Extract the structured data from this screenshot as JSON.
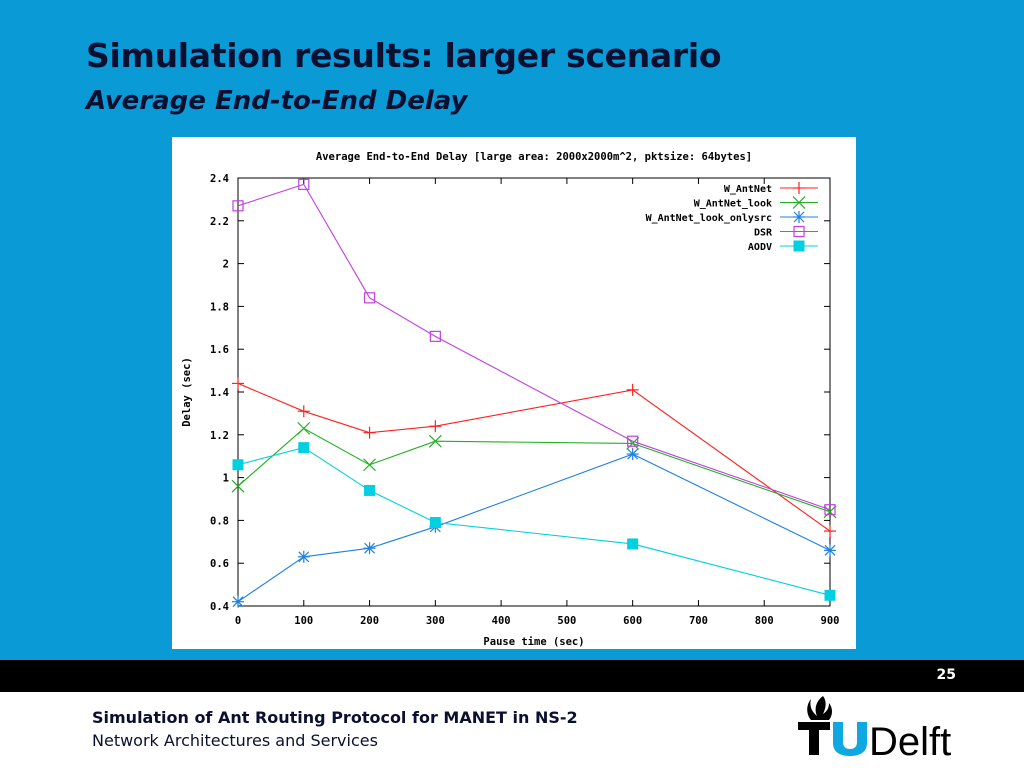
{
  "slide": {
    "title": "Simulation results: larger scenario",
    "subtitle": "Average End-to-End Delay",
    "page_number": "25",
    "footer_line1": "Simulation of Ant Routing Protocol for MANET in NS-2",
    "footer_line2": "Network Architectures and Services",
    "logo_text": "TUDelft",
    "background_color": "#0a9ad6"
  },
  "chart_data": {
    "type": "line",
    "title": "Average End-to-End Delay [large area: 2000x2000m^2, pktsize: 64bytes]",
    "xlabel": "Pause time (sec)",
    "ylabel": "Delay (sec)",
    "xlim": [
      0,
      900
    ],
    "ylim": [
      0.4,
      2.4
    ],
    "xticks": [
      0,
      100,
      200,
      300,
      400,
      500,
      600,
      700,
      800,
      900
    ],
    "yticks": [
      0.4,
      0.6,
      0.8,
      1,
      1.2,
      1.4,
      1.6,
      1.8,
      2,
      2.2,
      2.4
    ],
    "legend_position": "top-right",
    "grid": false,
    "series": [
      {
        "name": "W_AntNet",
        "color": "#ff2020",
        "marker": "plus",
        "x": [
          0,
          100,
          200,
          300,
          600,
          900
        ],
        "y": [
          1.44,
          1.31,
          1.21,
          1.24,
          1.41,
          0.75
        ]
      },
      {
        "name": "W_AntNet_look",
        "color": "#20b020",
        "marker": "cross",
        "x": [
          0,
          100,
          200,
          300,
          600,
          900
        ],
        "y": [
          0.96,
          1.23,
          1.06,
          1.17,
          1.16,
          0.84
        ]
      },
      {
        "name": "W_AntNet_look_onlysrc",
        "color": "#2080e0",
        "marker": "star",
        "x": [
          0,
          100,
          200,
          300,
          600,
          900
        ],
        "y": [
          0.42,
          0.63,
          0.67,
          0.77,
          1.11,
          0.66
        ]
      },
      {
        "name": "DSR",
        "color": "#c040e0",
        "marker": "square-open",
        "x": [
          0,
          100,
          200,
          300,
          600,
          900
        ],
        "y": [
          2.27,
          2.37,
          1.84,
          1.66,
          1.17,
          0.85
        ]
      },
      {
        "name": "AODV",
        "color": "#00d0e0",
        "marker": "square-filled",
        "x": [
          0,
          100,
          200,
          300,
          600,
          900
        ],
        "y": [
          1.06,
          1.14,
          0.94,
          0.79,
          0.69,
          0.45
        ]
      }
    ]
  }
}
